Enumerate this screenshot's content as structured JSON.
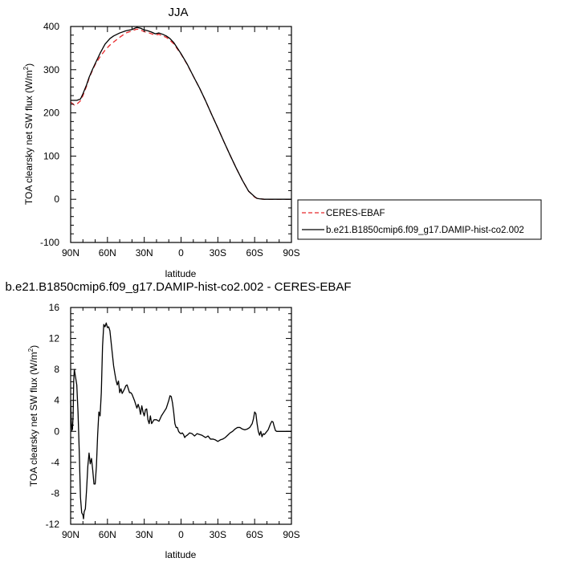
{
  "chart_data": [
    {
      "type": "line",
      "title": "JJA",
      "xlabel": "latitude",
      "ylabel": "TOA clearsky net SW flux (W/m²)",
      "xlim": [
        90,
        -90
      ],
      "ylim": [
        -100,
        400
      ],
      "xticks": [
        90,
        60,
        30,
        0,
        -30,
        -60,
        -90
      ],
      "xtick_labels": [
        "90N",
        "60N",
        "30N",
        "0",
        "30S",
        "60S",
        "90S"
      ],
      "yticks": [
        -100,
        0,
        100,
        200,
        300,
        400
      ],
      "ytick_labels": [
        "-100",
        "0",
        "100",
        "200",
        "300",
        "400"
      ],
      "legend_position": "right",
      "series": [
        {
          "name": "CERES-EBAF",
          "color": "#e8282b",
          "dash": "dashed",
          "x": [
            90,
            87,
            85,
            82,
            80,
            77,
            75,
            72,
            70,
            66,
            62,
            58,
            55,
            50,
            45,
            40,
            36,
            33,
            30,
            27,
            24,
            21,
            18,
            15,
            12,
            9,
            6,
            3,
            0,
            -5,
            -10,
            -15,
            -20,
            -25,
            -30,
            -35,
            -40,
            -45,
            -50,
            -55,
            -60,
            -62,
            -64,
            -66,
            -68,
            -70,
            -75,
            -80,
            -85,
            -90
          ],
          "y": [
            225,
            218,
            220,
            228,
            240,
            262,
            280,
            300,
            312,
            330,
            345,
            357,
            364,
            375,
            385,
            390,
            394,
            392,
            388,
            386,
            383,
            380,
            382,
            378,
            375,
            368,
            360,
            348,
            336,
            312,
            285,
            258,
            228,
            196,
            165,
            133,
            102,
            72,
            44,
            19,
            5,
            2,
            1,
            0.5,
            0,
            0,
            0,
            0,
            0,
            0
          ]
        },
        {
          "name": "b.e21.B1850cmip6.f09_g17.DAMIP-hist-co2.002",
          "color": "#000000",
          "dash": "solid",
          "x": [
            90,
            87,
            85,
            82,
            80,
            77,
            75,
            72,
            70,
            66,
            62,
            58,
            55,
            50,
            45,
            40,
            36,
            33,
            30,
            27,
            24,
            21,
            18,
            15,
            12,
            9,
            6,
            3,
            0,
            -5,
            -10,
            -15,
            -20,
            -25,
            -30,
            -35,
            -40,
            -45,
            -50,
            -55,
            -60,
            -62,
            -64,
            -66,
            -68,
            -70,
            -75,
            -80,
            -85,
            -90
          ],
          "y": [
            229,
            229,
            229,
            232,
            244,
            265,
            282,
            302,
            314,
            338,
            359,
            372,
            378,
            385,
            390,
            393,
            398,
            396,
            392,
            390,
            387,
            383,
            385,
            382,
            378,
            372,
            363,
            350,
            337,
            313,
            285,
            258,
            228,
            196,
            165,
            133,
            102,
            72,
            44,
            19,
            6,
            2,
            1,
            0.5,
            0,
            0,
            0,
            0,
            0,
            0
          ]
        }
      ]
    },
    {
      "type": "line",
      "title": "b.e21.B1850cmip6.f09_g17.DAMIP-hist-co2.002 - CERES-EBAF",
      "xlabel": "latitude",
      "ylabel": "TOA clearsky net SW flux (W/m²)",
      "xlim": [
        90,
        -90
      ],
      "ylim": [
        -12,
        16
      ],
      "xticks": [
        90,
        60,
        30,
        0,
        -30,
        -60,
        -90
      ],
      "xtick_labels": [
        "90N",
        "60N",
        "30N",
        "0",
        "30S",
        "60S",
        "90S"
      ],
      "yticks": [
        -12,
        -8,
        -4,
        0,
        4,
        8,
        12,
        16
      ],
      "ytick_labels": [
        "-12",
        "-8",
        "-4",
        "0",
        "4",
        "8",
        "12",
        "16"
      ],
      "series": [
        {
          "color": "#000000",
          "dash": "solid",
          "x": [
            90,
            89.5,
            89,
            88.5,
            88,
            87.5,
            87,
            86,
            85,
            84,
            83,
            82,
            81,
            80,
            79.5,
            79,
            78,
            77,
            76,
            75,
            74,
            73,
            72,
            71,
            70,
            69,
            68,
            67,
            66,
            65,
            64,
            63,
            62,
            61,
            60,
            59,
            58,
            57,
            56,
            55,
            54,
            53,
            52,
            51,
            50,
            49,
            48,
            47,
            46,
            45,
            44,
            43,
            42,
            41,
            40,
            38,
            36,
            35,
            34,
            33,
            32,
            31,
            30,
            29,
            28,
            27,
            26,
            25,
            24,
            22,
            20,
            18,
            16,
            14,
            12,
            10,
            9,
            8,
            7,
            6,
            5,
            4,
            3,
            2,
            1,
            0,
            -1,
            -2,
            -3,
            -4,
            -5,
            -7,
            -9,
            -11,
            -13,
            -15,
            -17,
            -20,
            -22,
            -24,
            -26,
            -28,
            -30,
            -32,
            -34,
            -36,
            -38,
            -40,
            -42,
            -44,
            -46,
            -48,
            -50,
            -52,
            -54,
            -56,
            -58,
            -59,
            -60,
            -61,
            -62,
            -63,
            -64,
            -65,
            -66,
            -67,
            -68,
            -69,
            -70,
            -71,
            -72,
            -73,
            -74,
            -75,
            -76,
            -77,
            -78,
            -79,
            -80,
            -82,
            -84,
            -86,
            -88,
            -90
          ],
          "y": [
            4.0,
            1.5,
            0.1,
            0.3,
            2.0,
            6.5,
            8.0,
            7.0,
            6.0,
            2.5,
            -2.5,
            -8.5,
            -10.5,
            -10.8,
            -11.3,
            -10.4,
            -10.0,
            -7.5,
            -4.5,
            -2.8,
            -4.2,
            -3.5,
            -5.0,
            -6.8,
            -6.8,
            -4.5,
            -0.5,
            2.5,
            2.0,
            5.0,
            11.0,
            13.8,
            13.5,
            14.0,
            13.4,
            13.5,
            13.0,
            11.5,
            10.0,
            8.5,
            7.5,
            6.6,
            6.0,
            6.5,
            5.0,
            5.5,
            4.9,
            5.2,
            5.5,
            5.9,
            6.0,
            5.5,
            5.0,
            5.0,
            4.8,
            4.0,
            3.0,
            3.5,
            3.0,
            2.2,
            3.3,
            2.5,
            2.0,
            2.8,
            2.9,
            1.5,
            1.0,
            2.0,
            1.0,
            1.5,
            1.5,
            1.3,
            2.0,
            2.5,
            3.0,
            4.0,
            4.6,
            4.5,
            3.7,
            2.5,
            1.0,
            0.5,
            0.5,
            0.0,
            -0.2,
            -0.3,
            -0.2,
            -0.4,
            -0.8,
            -0.6,
            -0.5,
            -0.2,
            -0.3,
            -0.6,
            -0.3,
            -0.4,
            -0.5,
            -0.8,
            -0.6,
            -1.0,
            -1.0,
            -1.1,
            -1.3,
            -1.1,
            -1.0,
            -0.8,
            -0.5,
            -0.2,
            0.0,
            0.3,
            0.5,
            0.5,
            0.3,
            0.2,
            0.3,
            0.5,
            1.0,
            1.6,
            2.5,
            2.3,
            1.0,
            0.0,
            -0.5,
            0.0,
            -0.7,
            -0.3,
            -0.4,
            -0.2,
            0.0,
            0.2,
            0.6,
            1.0,
            1.3,
            1.2,
            0.6,
            0.1,
            0.0,
            0.0,
            0.0,
            0.0,
            0.0,
            0.0,
            0.0,
            0.0
          ]
        }
      ]
    }
  ]
}
